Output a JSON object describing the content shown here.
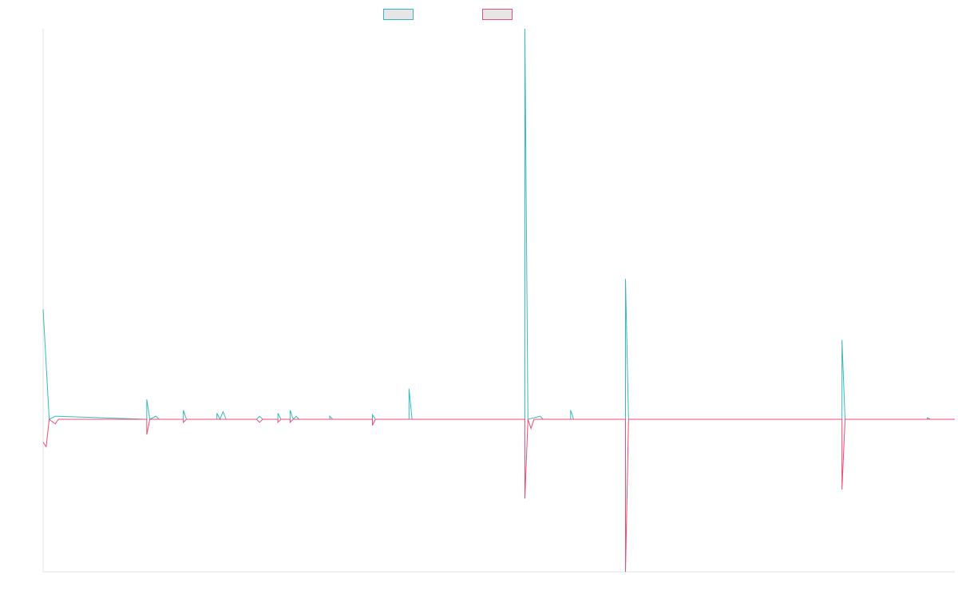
{
  "colors": {
    "series_a": "#3ab8be",
    "series_b": "#ee4c72",
    "swatch_fill": "#e6e6e6",
    "axis": "#e3e3e3"
  },
  "legend": {
    "items": [
      {
        "label": "",
        "color": "#3ab8be"
      },
      {
        "label": "",
        "color": "#ee4c72"
      }
    ]
  },
  "chart_data": {
    "type": "line",
    "title": "",
    "xlabel": "",
    "ylabel": "",
    "grid": false,
    "legend_placement": "top-center",
    "ylim": [
      -50,
      128
    ],
    "x": [
      0,
      1,
      2,
      3,
      4,
      5,
      6,
      7,
      8,
      9,
      10,
      11,
      12,
      13,
      14,
      15,
      16,
      17,
      18,
      19,
      20,
      21,
      22,
      23,
      24,
      25,
      26,
      27,
      28,
      29,
      30,
      31,
      32,
      33,
      34,
      35,
      36,
      37,
      38,
      39,
      40,
      41,
      42,
      43,
      44,
      45,
      46,
      47,
      48,
      49,
      50,
      51,
      52,
      53,
      54,
      55,
      56,
      57,
      58,
      59,
      60,
      61,
      62,
      63,
      64,
      65,
      66,
      67,
      68,
      69,
      70,
      71,
      72,
      73,
      74,
      75,
      76,
      77,
      78,
      79,
      80,
      81,
      82,
      83,
      84,
      85,
      86,
      87,
      88,
      89,
      90,
      91,
      92,
      93,
      94,
      95,
      96,
      97,
      98,
      99,
      100,
      101,
      102,
      103,
      104,
      105,
      106,
      107,
      108,
      109,
      110,
      111,
      112,
      113,
      114,
      115,
      116,
      117,
      118,
      119,
      120,
      121,
      122,
      123,
      124,
      125,
      126,
      127,
      128,
      129,
      130,
      131,
      132,
      133,
      134,
      135,
      136,
      137,
      138,
      139,
      140,
      141,
      142,
      143,
      144,
      145,
      146,
      147,
      148,
      149,
      150,
      151,
      152,
      153,
      154,
      155,
      156,
      157,
      158,
      159,
      160,
      161,
      162,
      163,
      164,
      165,
      166,
      167,
      168,
      169,
      170,
      171,
      172,
      173,
      174,
      175,
      176,
      177,
      178,
      179,
      180,
      181,
      182,
      183,
      184,
      185,
      186,
      187,
      188,
      189,
      190,
      191,
      192,
      193,
      194,
      195,
      196,
      197,
      198,
      199,
      200,
      201,
      202,
      203,
      204,
      205,
      206,
      207,
      208,
      209,
      210,
      211,
      212,
      213,
      214,
      215,
      216,
      217,
      218,
      219,
      220,
      221,
      222,
      223,
      224,
      225,
      226,
      227,
      228,
      229,
      230,
      231,
      232,
      233,
      234,
      235,
      236,
      237,
      238,
      239,
      240,
      241,
      242,
      243,
      244,
      245,
      246,
      247,
      248,
      249,
      250,
      251,
      252,
      253,
      254,
      255,
      256,
      257,
      258,
      259,
      260,
      261,
      262,
      263,
      264,
      265,
      266,
      267,
      268,
      269,
      270,
      271,
      272,
      273,
      274,
      275,
      276,
      277,
      278,
      279,
      280,
      281,
      282,
      283,
      284,
      285,
      286,
      287,
      288,
      289,
      290,
      291,
      292,
      293,
      294,
      295,
      296,
      297,
      298,
      299
    ],
    "series": [
      {
        "color": "#3ab8be",
        "points": [
          [
            0,
            36
          ],
          [
            2,
            0
          ],
          [
            4,
            1
          ],
          [
            34,
            0
          ],
          [
            34,
            6.5
          ],
          [
            35,
            0
          ],
          [
            37,
            1
          ],
          [
            38,
            0
          ],
          [
            46,
            0
          ],
          [
            46,
            3
          ],
          [
            47,
            0
          ],
          [
            57,
            0
          ],
          [
            57,
            2
          ],
          [
            58,
            0
          ],
          [
            59,
            2.5
          ],
          [
            60,
            0
          ],
          [
            70,
            0
          ],
          [
            71,
            1
          ],
          [
            72,
            0
          ],
          [
            77,
            0
          ],
          [
            77,
            2
          ],
          [
            78,
            0
          ],
          [
            81,
            0
          ],
          [
            81,
            3
          ],
          [
            82,
            0
          ],
          [
            83,
            1
          ],
          [
            84,
            0
          ],
          [
            94,
            0
          ],
          [
            94,
            1
          ],
          [
            95,
            0
          ],
          [
            108,
            0
          ],
          [
            108,
            1.5
          ],
          [
            109,
            0
          ],
          [
            120,
            0
          ],
          [
            120,
            10
          ],
          [
            121,
            0
          ],
          [
            158,
            0
          ],
          [
            158,
            128
          ],
          [
            159,
            0
          ],
          [
            163,
            1
          ],
          [
            164,
            0
          ],
          [
            173,
            0
          ],
          [
            173,
            3
          ],
          [
            174,
            0
          ],
          [
            191,
            0
          ],
          [
            191,
            46
          ],
          [
            192,
            0
          ],
          [
            262,
            0
          ],
          [
            262,
            26
          ],
          [
            263,
            0
          ],
          [
            290,
            0
          ],
          [
            290,
            0.5
          ],
          [
            291,
            0
          ],
          [
            299,
            0
          ]
        ]
      },
      {
        "color": "#ee4c72",
        "points": [
          [
            0,
            -7.5
          ],
          [
            1,
            -9
          ],
          [
            2,
            0
          ],
          [
            4,
            -1.5
          ],
          [
            5,
            0
          ],
          [
            34,
            0
          ],
          [
            34,
            -5
          ],
          [
            35,
            0
          ],
          [
            46,
            0
          ],
          [
            46,
            -1
          ],
          [
            47,
            0
          ],
          [
            70,
            0
          ],
          [
            71,
            -1
          ],
          [
            72,
            0
          ],
          [
            77,
            0
          ],
          [
            77,
            -1
          ],
          [
            78,
            0
          ],
          [
            81,
            0
          ],
          [
            81,
            -1
          ],
          [
            82,
            0
          ],
          [
            108,
            0
          ],
          [
            108,
            -2
          ],
          [
            109,
            0
          ],
          [
            158,
            0
          ],
          [
            158,
            -26
          ],
          [
            159,
            0
          ],
          [
            160,
            -3
          ],
          [
            161,
            0
          ],
          [
            191,
            0
          ],
          [
            191,
            -50
          ],
          [
            192,
            0
          ],
          [
            262,
            0
          ],
          [
            262,
            -23
          ],
          [
            263,
            0
          ],
          [
            299,
            0
          ]
        ]
      }
    ]
  }
}
